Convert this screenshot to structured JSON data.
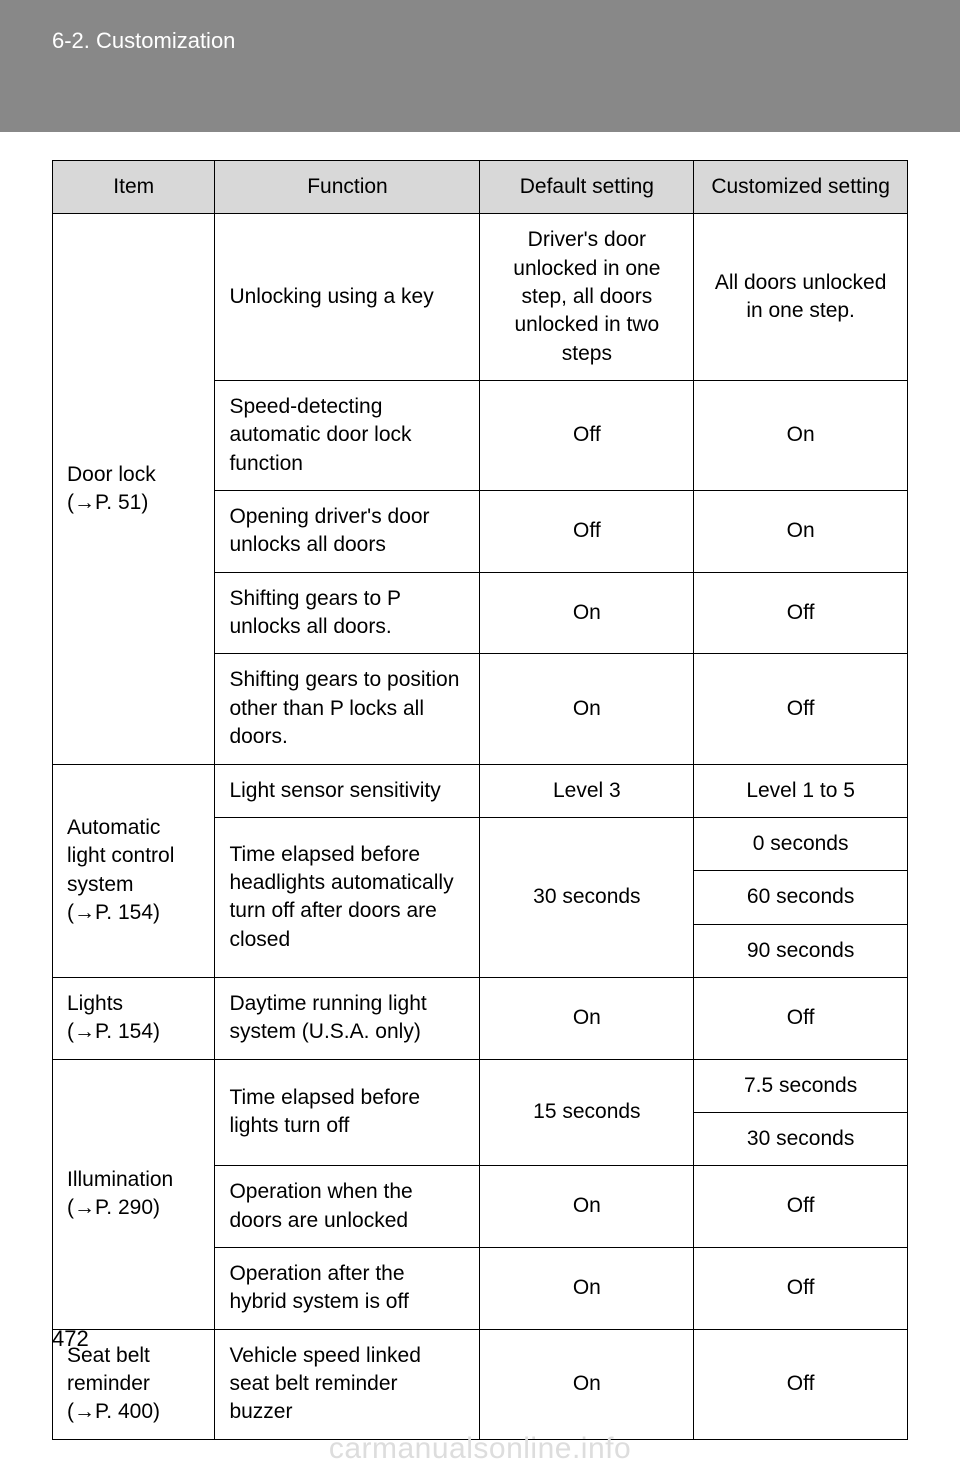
{
  "header": {
    "section": "6-2. Customization"
  },
  "page_number": "472",
  "watermark": "carmanualsonline.info",
  "arrow": "→",
  "table": {
    "headers": {
      "item": "Item",
      "function": "Function",
      "default_setting": "Default setting",
      "customized_setting": "Customized setting"
    },
    "groups": [
      {
        "item_label": "Door lock",
        "item_ref": "P. 51",
        "rows": [
          {
            "function": "Unlocking using a key",
            "default": "Driver's door unlocked in one step, all doors unlocked in two steps",
            "custom": [
              "All doors unlocked in one step."
            ]
          },
          {
            "function": "Speed-detecting automatic door lock function",
            "default": "Off",
            "custom": [
              "On"
            ]
          },
          {
            "function": "Opening driver's door unlocks all doors",
            "default": "Off",
            "custom": [
              "On"
            ]
          },
          {
            "function": "Shifting gears to P unlocks all doors.",
            "default": "On",
            "custom": [
              "Off"
            ]
          },
          {
            "function": "Shifting gears to position other than P locks all doors.",
            "default": "On",
            "custom": [
              "Off"
            ]
          }
        ]
      },
      {
        "item_label": "Automatic light control system",
        "item_ref": "P. 154",
        "rows": [
          {
            "function": "Light sensor sensitivity",
            "default": "Level 3",
            "custom": [
              "Level 1 to 5"
            ]
          },
          {
            "function": "Time elapsed before headlights automatically turn off after doors are closed",
            "default": "30 seconds",
            "custom": [
              "0 seconds",
              "60 seconds",
              "90 seconds"
            ]
          }
        ]
      },
      {
        "item_label": "Lights",
        "item_ref": "P. 154",
        "rows": [
          {
            "function": "Daytime running light system (U.S.A. only)",
            "default": "On",
            "custom": [
              "Off"
            ]
          }
        ]
      },
      {
        "item_label": "Illumination",
        "item_ref": "P. 290",
        "rows": [
          {
            "function": "Time elapsed before lights turn off",
            "default": "15 seconds",
            "custom": [
              "7.5 seconds",
              "30 seconds"
            ]
          },
          {
            "function": "Operation when the doors are unlocked",
            "default": "On",
            "custom": [
              "Off"
            ]
          },
          {
            "function": "Operation after the hybrid system is off",
            "default": "On",
            "custom": [
              "Off"
            ]
          }
        ]
      },
      {
        "item_label": "Seat belt reminder",
        "item_ref": "P. 400",
        "rows": [
          {
            "function": "Vehicle speed linked seat belt reminder buzzer",
            "default": "On",
            "custom": [
              "Off"
            ]
          }
        ]
      }
    ]
  }
}
